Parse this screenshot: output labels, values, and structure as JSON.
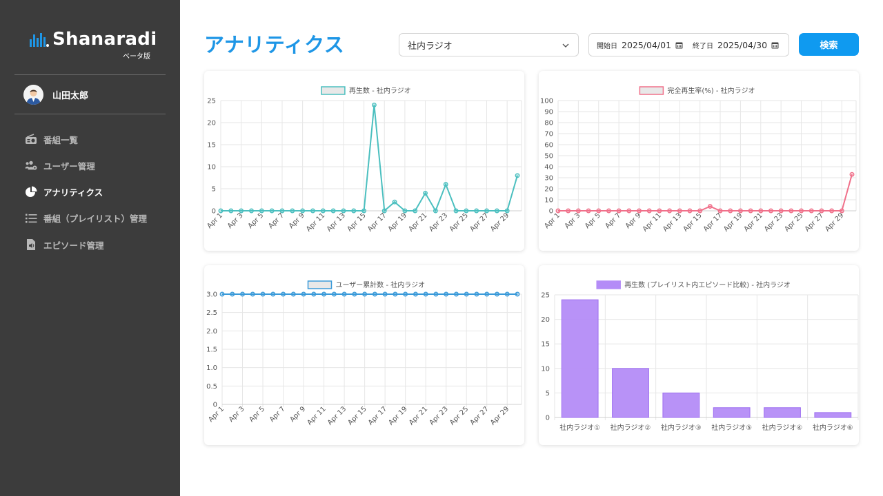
{
  "app": {
    "logo_text": "Shanaradi",
    "logo_sub": "ベータ版",
    "user_name": "山田太郎"
  },
  "sidebar": {
    "items": [
      {
        "label": "番組一覧",
        "icon": "radio-icon",
        "active": false
      },
      {
        "label": "ユーザー管理",
        "icon": "users-gear-icon",
        "active": false
      },
      {
        "label": "アナリティクス",
        "icon": "pie-chart-icon",
        "active": true
      },
      {
        "label": "番組（プレイリスト）管理",
        "icon": "list-icon",
        "active": false
      },
      {
        "label": "エピソード管理",
        "icon": "audio-file-icon",
        "active": false
      }
    ]
  },
  "header": {
    "title": "アナリティクス",
    "channel_select": "社内ラジオ",
    "start_label": "開始日",
    "start_date": "2025/04/01",
    "end_label": "終了日",
    "end_date": "2025/04/30",
    "search_label": "検索"
  },
  "colors": {
    "accent": "#1e96e6",
    "button": "#0f9af0",
    "sidebar_bg": "#3c3c3c",
    "teal": "#4bbfbf",
    "pink": "#f0708a",
    "blue": "#3a9ad9",
    "purple": "#b48cf7"
  },
  "chart_data": [
    {
      "type": "line",
      "legend": "再生数 - 社内ラジオ",
      "color": "#4bbfbf",
      "x": [
        "Apr 1",
        "Apr 2",
        "Apr 3",
        "Apr 4",
        "Apr 5",
        "Apr 6",
        "Apr 7",
        "Apr 8",
        "Apr 9",
        "Apr 10",
        "Apr 11",
        "Apr 12",
        "Apr 13",
        "Apr 14",
        "Apr 15",
        "Apr 16",
        "Apr 17",
        "Apr 18",
        "Apr 19",
        "Apr 20",
        "Apr 21",
        "Apr 22",
        "Apr 23",
        "Apr 24",
        "Apr 25",
        "Apr 26",
        "Apr 27",
        "Apr 28",
        "Apr 29",
        "Apr 30"
      ],
      "xticks": [
        "Apr 1",
        "Apr 3",
        "Apr 5",
        "Apr 7",
        "Apr 9",
        "Apr 11",
        "Apr 13",
        "Apr 15",
        "Apr 17",
        "Apr 19",
        "Apr 21",
        "Apr 23",
        "Apr 25",
        "Apr 27",
        "Apr 29"
      ],
      "values": [
        0,
        0,
        0,
        0,
        0,
        0,
        0,
        0,
        0,
        0,
        0,
        0,
        0,
        0,
        0,
        24,
        0,
        2,
        0,
        0,
        4,
        0,
        6,
        0,
        0,
        0,
        0,
        0,
        0,
        8
      ],
      "ylim": [
        0,
        25
      ],
      "yticks": [
        "0",
        "5",
        "10",
        "15",
        "20",
        "25"
      ],
      "ytick_values": [
        0,
        5,
        10,
        15,
        20,
        25
      ],
      "grid": true,
      "legend_position": "top"
    },
    {
      "type": "line",
      "legend": "完全再生率(%) - 社内ラジオ",
      "color": "#f0708a",
      "x": [
        "Apr 1",
        "Apr 2",
        "Apr 3",
        "Apr 4",
        "Apr 5",
        "Apr 6",
        "Apr 7",
        "Apr 8",
        "Apr 9",
        "Apr 10",
        "Apr 11",
        "Apr 12",
        "Apr 13",
        "Apr 14",
        "Apr 15",
        "Apr 16",
        "Apr 17",
        "Apr 18",
        "Apr 19",
        "Apr 20",
        "Apr 21",
        "Apr 22",
        "Apr 23",
        "Apr 24",
        "Apr 25",
        "Apr 26",
        "Apr 27",
        "Apr 28",
        "Apr 29",
        "Apr 30"
      ],
      "xticks": [
        "Apr 1",
        "Apr 3",
        "Apr 5",
        "Apr 7",
        "Apr 9",
        "Apr 11",
        "Apr 13",
        "Apr 15",
        "Apr 17",
        "Apr 19",
        "Apr 21",
        "Apr 23",
        "Apr 25",
        "Apr 27",
        "Apr 29"
      ],
      "values": [
        0,
        0,
        0,
        0,
        0,
        0,
        0,
        0,
        0,
        0,
        0,
        0,
        0,
        0,
        0,
        4,
        0,
        0,
        0,
        0,
        0,
        0,
        0,
        0,
        0,
        0,
        0,
        0,
        0,
        33
      ],
      "ylim": [
        0,
        100
      ],
      "yticks": [
        "0",
        "10",
        "20",
        "30",
        "40",
        "50",
        "60",
        "70",
        "80",
        "90",
        "100"
      ],
      "ytick_values": [
        0,
        10,
        20,
        30,
        40,
        50,
        60,
        70,
        80,
        90,
        100
      ],
      "grid": true,
      "legend_position": "top"
    },
    {
      "type": "line",
      "legend": "ユーザー累計数 - 社内ラジオ",
      "color": "#3a9ad9",
      "x": [
        "Apr 1",
        "Apr 2",
        "Apr 3",
        "Apr 4",
        "Apr 5",
        "Apr 6",
        "Apr 7",
        "Apr 8",
        "Apr 9",
        "Apr 10",
        "Apr 11",
        "Apr 12",
        "Apr 13",
        "Apr 14",
        "Apr 15",
        "Apr 16",
        "Apr 17",
        "Apr 18",
        "Apr 19",
        "Apr 20",
        "Apr 21",
        "Apr 22",
        "Apr 23",
        "Apr 24",
        "Apr 25",
        "Apr 26",
        "Apr 27",
        "Apr 28",
        "Apr 29",
        "Apr 30"
      ],
      "xticks": [
        "Apr 1",
        "Apr 3",
        "Apr 5",
        "Apr 7",
        "Apr 9",
        "Apr 11",
        "Apr 13",
        "Apr 15",
        "Apr 17",
        "Apr 19",
        "Apr 21",
        "Apr 23",
        "Apr 25",
        "Apr 27",
        "Apr 29"
      ],
      "values": [
        3,
        3,
        3,
        3,
        3,
        3,
        3,
        3,
        3,
        3,
        3,
        3,
        3,
        3,
        3,
        3,
        3,
        3,
        3,
        3,
        3,
        3,
        3,
        3,
        3,
        3,
        3,
        3,
        3,
        3
      ],
      "ylim": [
        0,
        3
      ],
      "yticks": [
        "0",
        "0.5",
        "1.0",
        "1.5",
        "2.0",
        "2.5",
        "3.0"
      ],
      "ytick_values": [
        0,
        0.5,
        1,
        1.5,
        2,
        2.5,
        3
      ],
      "grid": true,
      "legend_position": "top"
    },
    {
      "type": "bar",
      "legend": "再生数 (プレイリスト内エピソード比較) - 社内ラジオ",
      "color": "#b48cf7",
      "categories": [
        "社内ラジオ①",
        "社内ラジオ②",
        "社内ラジオ③",
        "社内ラジオ⑤",
        "社内ラジオ④",
        "社内ラジオ⑥"
      ],
      "values": [
        24,
        10,
        5,
        2,
        2,
        1
      ],
      "ylim": [
        0,
        25
      ],
      "yticks": [
        "0",
        "5",
        "10",
        "15",
        "20",
        "25"
      ],
      "ytick_values": [
        0,
        5,
        10,
        15,
        20,
        25
      ],
      "grid": true,
      "legend_position": "top"
    }
  ]
}
